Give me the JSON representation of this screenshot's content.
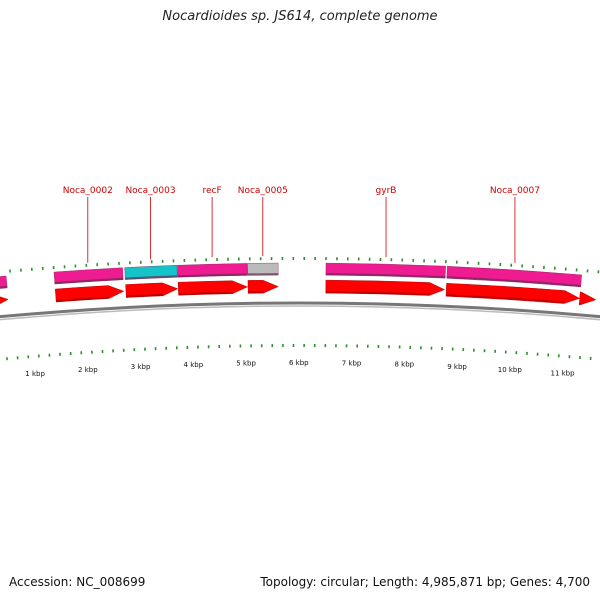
{
  "title": "Nocardioides sp. JS614, complete genome",
  "accession": "Accession: NC_008699",
  "topology": "Topology: circular; Length: 4,985,871 bp; Genes: 4,700",
  "colors": {
    "cds": "#ff0000",
    "gene_pink": "#ee1c90",
    "gene_cyan": "#14c4c8",
    "gene_grey": "#bbbbbb",
    "backbone": "#777777",
    "ticks": "#2f8f2f",
    "label": "#cc0000"
  },
  "genes": [
    {
      "name": "",
      "start": -0.5,
      "end": 0.62,
      "color": "pink"
    },
    {
      "name": "Noca_0002",
      "start": 1.5,
      "end": 2.76,
      "color": "pink"
    },
    {
      "name": "Noca_0003",
      "start": 2.8,
      "end": 3.76,
      "color": "cyan"
    },
    {
      "name": "recF",
      "start": 3.77,
      "end": 5.05,
      "color": "pink"
    },
    {
      "name": "Noca_0005",
      "start": 5.06,
      "end": 5.62,
      "color": "grey"
    },
    {
      "name": "gyrB",
      "start": 6.5,
      "end": 8.7,
      "color": "pink"
    },
    {
      "name": "Noca_0007",
      "start": 8.73,
      "end": 11.2,
      "color": "pink"
    },
    {
      "name": "",
      "start": 11.2,
      "end": 11.5,
      "color": "cds"
    }
  ],
  "kbp_labels": [
    "1 kbp",
    "2 kbp",
    "3 kbp",
    "4 kbp",
    "5 kbp",
    "6 kbp",
    "7 kbp",
    "8 kbp",
    "9 kbp",
    "10 kbp",
    "11 kbp"
  ]
}
